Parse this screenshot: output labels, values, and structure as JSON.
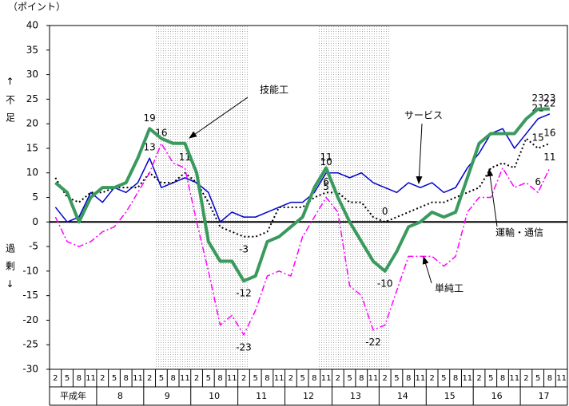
{
  "chart_data": {
    "type": "line",
    "y_unit_label": "（ポイント）",
    "shortage_label": "↑不足",
    "surplus_label": "過剰↓",
    "categories": [
      "2",
      "5",
      "8",
      "11",
      "2",
      "5",
      "8",
      "11",
      "2",
      "5",
      "8",
      "11",
      "2",
      "5",
      "8",
      "11",
      "2",
      "5",
      "8",
      "11",
      "2",
      "5",
      "8",
      "11",
      "2",
      "5",
      "8",
      "11",
      "2",
      "5",
      "8",
      "11",
      "2",
      "5",
      "8",
      "11",
      "2",
      "5",
      "8",
      "11",
      "2",
      "5",
      "8",
      "11"
    ],
    "year_labels": [
      "平成年",
      "8",
      "9",
      "10",
      "11",
      "12",
      "13",
      "14",
      "15",
      "16",
      "17"
    ],
    "ylim": [
      -30,
      40
    ],
    "yticks": [
      -30,
      -25,
      -20,
      -15,
      -10,
      -5,
      0,
      5,
      10,
      15,
      20,
      25,
      30,
      35,
      40
    ],
    "series": [
      {
        "name": "サービス",
        "color": "#0000cc",
        "dash": "solid",
        "width": 1.5,
        "values": [
          3,
          0,
          1,
          6,
          4,
          7,
          6,
          8,
          13,
          7,
          8,
          9,
          8,
          6,
          0,
          2,
          1,
          1,
          2,
          3,
          4,
          4,
          6,
          10,
          10,
          9,
          10,
          8,
          7,
          6,
          8,
          7,
          8,
          6,
          7,
          11,
          14,
          18,
          19,
          15,
          18,
          21,
          22,
          null
        ],
        "value_labels": [
          null,
          null,
          null,
          null,
          null,
          null,
          null,
          null,
          "13",
          null,
          null,
          null,
          null,
          null,
          null,
          null,
          null,
          null,
          null,
          null,
          null,
          null,
          null,
          "10",
          null,
          null,
          null,
          null,
          null,
          null,
          null,
          null,
          null,
          null,
          null,
          null,
          null,
          null,
          null,
          null,
          null,
          "21",
          "22",
          null
        ]
      },
      {
        "name": "運輸・通信",
        "color": "#000000",
        "dash": "dotted",
        "width": 2,
        "values": [
          9,
          5,
          4,
          6,
          6,
          7,
          7,
          7,
          10,
          8,
          8,
          10,
          8,
          4,
          -1,
          -2,
          -3,
          -3,
          -2,
          3,
          3,
          3,
          5,
          6,
          6,
          4,
          4,
          1,
          0,
          1,
          2,
          3,
          4,
          4,
          5,
          6,
          7,
          11,
          12,
          11,
          17,
          15,
          16,
          null
        ],
        "value_labels": [
          null,
          null,
          null,
          null,
          null,
          null,
          null,
          null,
          null,
          null,
          null,
          null,
          null,
          null,
          null,
          null,
          "-3",
          null,
          null,
          null,
          null,
          null,
          null,
          "6",
          null,
          null,
          null,
          null,
          "0",
          null,
          null,
          null,
          null,
          null,
          null,
          null,
          null,
          null,
          null,
          null,
          null,
          "15",
          "16",
          null
        ]
      },
      {
        "name": "単純工",
        "color": "#ff00ff",
        "dash": "dashdot",
        "width": 1.5,
        "values": [
          1,
          -4,
          -5,
          -4,
          -2,
          -1,
          2,
          6,
          10,
          16,
          12,
          11,
          0,
          -10,
          -21,
          -19,
          -23,
          -18,
          -11,
          -10,
          -11,
          -3,
          1,
          5,
          2,
          -13,
          -15,
          -22,
          -21,
          -14,
          -7,
          -7,
          -7,
          -9,
          -7,
          2,
          5,
          5,
          11,
          7,
          8,
          6,
          11,
          null
        ],
        "value_labels": [
          null,
          null,
          null,
          null,
          null,
          null,
          null,
          null,
          null,
          "16",
          null,
          "11",
          null,
          null,
          null,
          null,
          "-23",
          null,
          null,
          null,
          null,
          null,
          null,
          "5",
          null,
          null,
          null,
          "-22",
          null,
          null,
          null,
          null,
          null,
          null,
          null,
          null,
          null,
          null,
          null,
          null,
          null,
          "6",
          "11",
          null
        ]
      },
      {
        "name": "技能工",
        "color": "#3a9a5e",
        "dash": "solid",
        "width": 4,
        "values": [
          8,
          6,
          0,
          5,
          7,
          7,
          8,
          13,
          19,
          17,
          16,
          16,
          10,
          -4,
          -8,
          -8,
          -12,
          -11,
          -4,
          -3,
          -1,
          1,
          7,
          11,
          5,
          0,
          -4,
          -8,
          -10,
          -6,
          -1,
          0,
          2,
          1,
          2,
          9,
          16,
          18,
          18,
          18,
          21,
          23,
          23,
          null
        ],
        "value_labels": [
          null,
          null,
          null,
          null,
          null,
          null,
          null,
          null,
          "19",
          null,
          null,
          null,
          null,
          null,
          null,
          null,
          "-12",
          null,
          null,
          null,
          null,
          null,
          null,
          "11",
          null,
          null,
          null,
          null,
          "-10",
          null,
          null,
          null,
          null,
          null,
          null,
          null,
          null,
          null,
          null,
          null,
          null,
          "23",
          "23",
          null
        ]
      }
    ]
  }
}
